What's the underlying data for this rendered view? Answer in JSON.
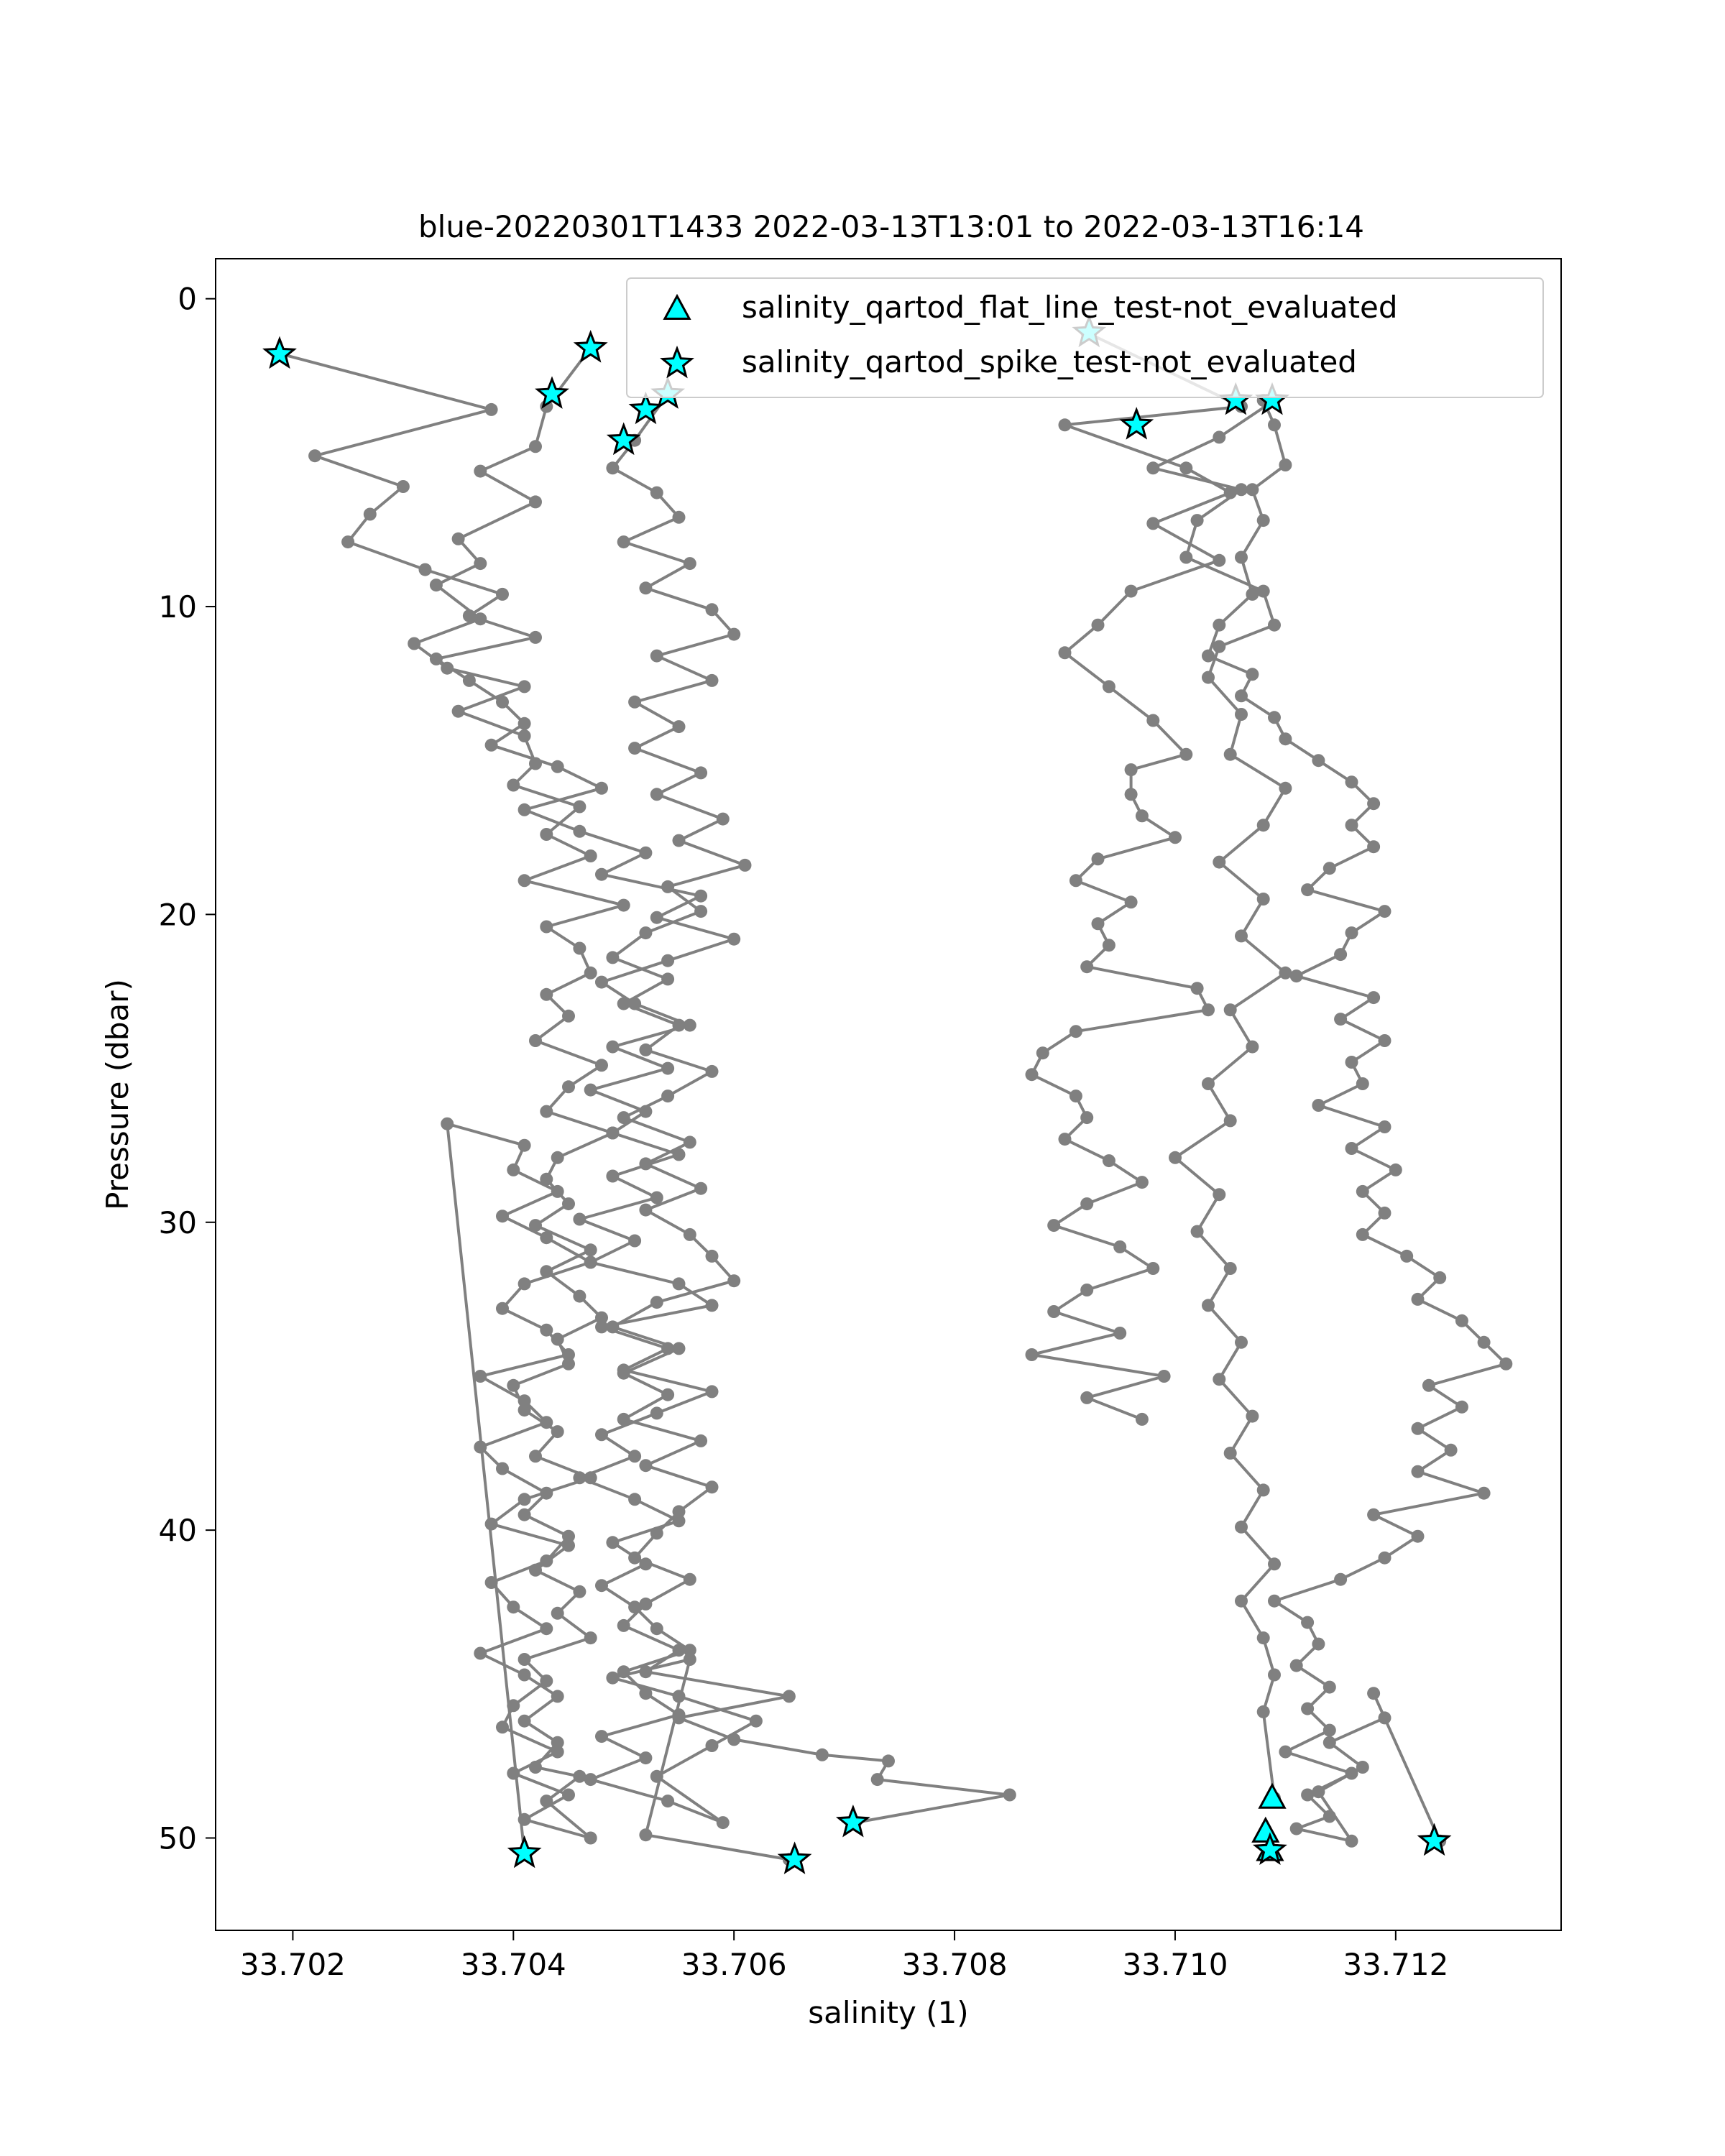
{
  "chart_data": {
    "type": "line",
    "title": "blue-20220301T1433 2022-03-13T13:01 to 2022-03-13T16:14",
    "xlabel": "salinity (1)",
    "ylabel": "Pressure (dbar)",
    "xlim": [
      33.7013,
      33.7135
    ],
    "ylim": [
      53.0,
      -1.3
    ],
    "y_inverted": true,
    "grid": false,
    "xticks": [
      33.702,
      33.704,
      33.706,
      33.708,
      33.71,
      33.712
    ],
    "xtick_labels": [
      "33.702",
      "33.704",
      "33.706",
      "33.708",
      "33.710",
      "33.712"
    ],
    "yticks": [
      0,
      10,
      20,
      30,
      40,
      50
    ],
    "ytick_labels": [
      "0",
      "10",
      "20",
      "30",
      "40",
      "50"
    ],
    "colors": {
      "profile_line": "#808080",
      "flag_fill": "#00ffff",
      "flag_edge": "#000000"
    },
    "legend": {
      "position": "upper-right",
      "entries": [
        {
          "label": "salinity_qartod_flat_line_test-not_evaluated",
          "marker": "triangle"
        },
        {
          "label": "salinity_qartod_spike_test-not_evaluated",
          "marker": "star"
        }
      ]
    },
    "series": [
      {
        "x": [
          33.7047,
          33.7043,
          33.7042,
          33.7037,
          33.7042,
          33.7035,
          33.7037,
          33.7033,
          33.7037,
          33.7031,
          33.7034,
          33.7041,
          33.7035,
          33.7041,
          33.7042,
          33.704,
          33.7046,
          33.7043,
          33.7047,
          33.7041,
          33.705,
          33.7043,
          33.7046,
          33.7047,
          33.7043,
          33.7045,
          33.7042,
          33.7048,
          33.7045,
          33.7043,
          33.7049,
          33.7044,
          33.7043,
          33.7045,
          33.7042,
          33.7047,
          33.7043,
          33.7046,
          33.7048,
          33.7044,
          33.7045,
          33.704,
          33.7041,
          33.7044,
          33.7042,
          33.7047,
          33.7041,
          33.7038,
          33.7045,
          33.7042,
          33.7046,
          33.7044,
          33.7047,
          33.7041,
          33.7043,
          33.704,
          33.7039,
          33.7044,
          33.704,
          33.7045,
          33.7041,
          33.7047,
          33.7043,
          33.7046,
          33.7042,
          33.7044,
          33.7041,
          33.7044,
          33.7041,
          33.7037,
          33.7043,
          33.704,
          33.7038,
          33.7043,
          33.7045,
          33.7041,
          33.7043,
          33.7039,
          33.7037,
          33.7043,
          33.7041,
          33.7037,
          33.7045,
          33.7043,
          33.7039,
          33.7041,
          33.7047,
          33.7043,
          33.7039,
          33.7044,
          33.704,
          33.7041,
          33.7034,
          33.7041
        ],
        "y": [
          1.6,
          3.5,
          4.8,
          5.6,
          6.6,
          7.8,
          8.6,
          9.3,
          10.4,
          11.2,
          12.0,
          12.6,
          13.4,
          14.2,
          15.1,
          15.8,
          16.5,
          17.4,
          18.1,
          18.9,
          19.7,
          20.4,
          21.1,
          21.9,
          22.6,
          23.3,
          24.1,
          24.9,
          25.6,
          26.4,
          27.1,
          27.9,
          28.6,
          29.4,
          30.1,
          30.9,
          31.6,
          32.4,
          33.1,
          33.8,
          34.6,
          35.3,
          36.1,
          36.8,
          37.6,
          38.3,
          39.0,
          39.8,
          40.5,
          41.3,
          42.0,
          42.7,
          43.5,
          44.2,
          44.9,
          45.7,
          46.4,
          47.2,
          47.9,
          48.6,
          49.4,
          50.0,
          48.8,
          48.0,
          47.7,
          46.9,
          46.2,
          45.4,
          44.7,
          44.0,
          43.2,
          42.5,
          41.7,
          41.0,
          40.2,
          39.5,
          38.8,
          38.0,
          37.3,
          36.5,
          35.8,
          35.0,
          34.3,
          33.5,
          32.8,
          32.0,
          31.3,
          30.5,
          29.8,
          29.0,
          28.3,
          27.5,
          26.8,
          50.5
        ]
      },
      {
        "x": [
          33.7019,
          33.7038,
          33.7022,
          33.703,
          33.7027,
          33.7025,
          33.7032,
          33.7039,
          33.7036,
          33.7042,
          33.7033,
          33.7036,
          33.7039,
          33.7041,
          33.7038,
          33.7044,
          33.7048,
          33.7041,
          33.7046,
          33.7052,
          33.7048,
          33.7057,
          33.7053,
          33.706,
          33.7054,
          33.7048,
          33.7051,
          33.7056,
          33.7049,
          33.7054,
          33.7047,
          33.7052,
          33.7049,
          33.7055,
          33.7049,
          33.7053,
          33.7046,
          33.7051,
          33.7047,
          33.7055,
          33.7058,
          33.7048,
          33.7054,
          33.705,
          33.7058,
          33.7053,
          33.7048,
          33.7051,
          33.7046,
          33.7051,
          33.7055,
          33.7049,
          33.7052,
          33.7048,
          33.7051,
          33.7053,
          33.7056,
          33.705,
          33.7052,
          33.7055,
          33.7048,
          33.7052,
          33.7047,
          33.7054,
          33.7059,
          33.7053,
          33.7058,
          33.7062,
          33.7055,
          33.7049,
          33.7056,
          33.7052,
          33.7065
        ],
        "y": [
          1.8,
          3.6,
          5.1,
          6.1,
          7.0,
          7.9,
          8.8,
          9.6,
          10.3,
          11.0,
          11.7,
          12.4,
          13.1,
          13.8,
          14.5,
          15.2,
          15.9,
          16.6,
          17.3,
          18.0,
          18.7,
          19.4,
          20.1,
          20.8,
          21.5,
          22.2,
          22.9,
          23.6,
          24.3,
          25.0,
          25.7,
          26.4,
          27.1,
          27.8,
          28.5,
          29.2,
          29.9,
          30.6,
          31.3,
          32.0,
          32.7,
          33.4,
          34.1,
          34.8,
          35.5,
          36.2,
          36.9,
          37.6,
          38.3,
          39.0,
          39.7,
          40.4,
          41.1,
          41.8,
          42.5,
          43.2,
          43.9,
          44.6,
          45.3,
          46.0,
          46.7,
          47.4,
          48.1,
          48.8,
          49.5,
          48.0,
          47.0,
          46.2,
          45.4,
          44.8,
          44.2,
          49.9,
          50.7
        ]
      },
      {
        "x": [
          33.7054,
          33.7051,
          33.7049,
          33.7053,
          33.7055,
          33.705,
          33.7056,
          33.7052,
          33.7058,
          33.706,
          33.7053,
          33.7058,
          33.7051,
          33.7055,
          33.7051,
          33.7057,
          33.7053,
          33.7059,
          33.7055,
          33.7061,
          33.7054,
          33.7057,
          33.7052,
          33.7049,
          33.7054,
          33.705,
          33.7055,
          33.7052,
          33.7058,
          33.7054,
          33.705,
          33.7056,
          33.7052,
          33.7057,
          33.7052,
          33.7056,
          33.7058,
          33.706,
          33.7053,
          33.7049,
          33.7055,
          33.705,
          33.7054,
          33.705,
          33.7057,
          33.7052,
          33.7058,
          33.7055,
          33.7053,
          33.7051,
          33.7056,
          33.7052,
          33.705,
          33.7055,
          33.7052,
          33.7065,
          33.7055,
          33.706,
          33.7068,
          33.7074,
          33.7073,
          33.7085,
          33.7071
        ],
        "y": [
          3.1,
          4.6,
          5.5,
          6.3,
          7.1,
          7.9,
          8.6,
          9.4,
          10.1,
          10.9,
          11.6,
          12.4,
          13.1,
          13.9,
          14.6,
          15.4,
          16.1,
          16.9,
          17.6,
          18.4,
          19.1,
          19.9,
          20.6,
          21.4,
          22.1,
          22.9,
          23.6,
          24.4,
          25.1,
          25.9,
          26.6,
          27.4,
          28.1,
          28.9,
          29.6,
          30.4,
          31.1,
          31.9,
          32.6,
          33.4,
          34.1,
          34.9,
          35.6,
          36.4,
          37.1,
          37.9,
          38.6,
          39.4,
          40.1,
          40.9,
          41.6,
          42.4,
          43.1,
          43.9,
          44.6,
          45.4,
          46.1,
          46.8,
          47.3,
          47.5,
          48.1,
          48.6,
          49.5
        ]
      },
      {
        "x": [
          33.7092,
          33.7106,
          33.709,
          33.7101,
          33.7105,
          33.7098,
          33.7104,
          33.7096,
          33.7093,
          33.709,
          33.7094,
          33.7098,
          33.7101,
          33.7096,
          33.7096,
          33.7097,
          33.71,
          33.7093,
          33.7091,
          33.7096,
          33.7093,
          33.7094,
          33.7092,
          33.7102,
          33.7103,
          33.7091,
          33.7088,
          33.7087,
          33.7091,
          33.7092,
          33.709,
          33.7094,
          33.7097,
          33.7092,
          33.7089,
          33.7095,
          33.7098,
          33.7092,
          33.7089,
          33.7095,
          33.7087,
          33.7099,
          33.7092,
          33.7097
        ],
        "y": [
          1.1,
          3.5,
          4.1,
          5.5,
          6.3,
          7.3,
          8.5,
          9.5,
          10.6,
          11.5,
          12.6,
          13.7,
          14.8,
          15.3,
          16.1,
          16.8,
          17.5,
          18.2,
          18.9,
          19.6,
          20.3,
          21.0,
          21.7,
          22.4,
          23.1,
          23.8,
          24.5,
          25.2,
          25.9,
          26.6,
          27.3,
          28.0,
          28.7,
          29.4,
          30.1,
          30.8,
          31.5,
          32.2,
          32.9,
          33.6,
          34.3,
          35.0,
          35.7,
          36.4
        ]
      },
      {
        "x": [
          33.7108,
          33.7109,
          33.711,
          33.7107,
          33.7108,
          33.7106,
          33.7107,
          33.7104,
          33.7103,
          33.7107,
          33.7106,
          33.7109,
          33.711,
          33.7113,
          33.7116,
          33.7118,
          33.7116,
          33.7118,
          33.7114,
          33.7112,
          33.7119,
          33.7116,
          33.7115,
          33.7111,
          33.7118,
          33.7115,
          33.7119,
          33.7116,
          33.7117,
          33.7113,
          33.7119,
          33.7116,
          33.712,
          33.7117,
          33.7119,
          33.7117,
          33.7121,
          33.7124,
          33.7122,
          33.7126,
          33.7128,
          33.713,
          33.7123,
          33.7126,
          33.7122,
          33.7125,
          33.7122,
          33.7128,
          33.7118,
          33.7122,
          33.7119,
          33.7115,
          33.7109,
          33.7112,
          33.7113,
          33.7111,
          33.7114,
          33.7112,
          33.7114,
          33.711,
          33.7116,
          33.7112,
          33.7114,
          33.7111,
          33.7116,
          33.7113,
          33.7117,
          33.7114,
          33.7119,
          33.7118,
          33.7124
        ],
        "y": [
          3.3,
          4.1,
          5.4,
          6.2,
          7.2,
          8.4,
          9.6,
          10.6,
          11.6,
          12.2,
          12.9,
          13.6,
          14.3,
          15.0,
          15.7,
          16.4,
          17.1,
          17.8,
          18.5,
          19.2,
          19.9,
          20.6,
          21.3,
          22.0,
          22.7,
          23.4,
          24.1,
          24.8,
          25.5,
          26.2,
          26.9,
          27.6,
          28.3,
          29.0,
          29.7,
          30.4,
          31.1,
          31.8,
          32.5,
          33.2,
          33.9,
          34.6,
          35.3,
          36.0,
          36.7,
          37.4,
          38.1,
          38.8,
          39.5,
          40.2,
          40.9,
          41.6,
          42.3,
          43.0,
          43.7,
          44.4,
          45.1,
          45.8,
          46.5,
          47.2,
          47.9,
          48.6,
          49.3,
          49.7,
          50.1,
          48.5,
          47.7,
          46.9,
          46.1,
          45.3,
          50.1
        ]
      },
      {
        "x": [
          33.7109,
          33.7104,
          33.7098,
          33.7106,
          33.7102,
          33.7101,
          33.7108,
          33.7109,
          33.7104,
          33.7103,
          33.7106,
          33.7105,
          33.711,
          33.7108,
          33.7104,
          33.7108,
          33.7106,
          33.711,
          33.7105,
          33.7107,
          33.7103,
          33.7105,
          33.71,
          33.7104,
          33.7102,
          33.7105,
          33.7103,
          33.7106,
          33.7104,
          33.7107,
          33.7105,
          33.7108,
          33.7106,
          33.7109,
          33.7106,
          33.7108,
          33.7109,
          33.7108,
          33.7109
        ],
        "y": [
          3.3,
          4.5,
          5.5,
          6.2,
          7.2,
          8.4,
          9.5,
          10.6,
          11.3,
          12.3,
          13.5,
          14.8,
          15.9,
          17.1,
          18.3,
          19.5,
          20.7,
          21.9,
          23.1,
          24.3,
          25.5,
          26.7,
          27.9,
          29.1,
          30.3,
          31.5,
          32.7,
          33.9,
          35.1,
          36.3,
          37.5,
          38.7,
          39.9,
          41.1,
          42.3,
          43.5,
          44.7,
          45.9,
          48.7
        ]
      }
    ],
    "flat_line_flags": {
      "x": [
        33.71088,
        33.71082,
        33.71086
      ],
      "y": [
        48.7,
        49.8,
        50.4
      ]
    },
    "spike_flags": {
      "x": [
        33.70188,
        33.70435,
        33.7047,
        33.705,
        33.7052,
        33.7054,
        33.7041,
        33.70655,
        33.70708,
        33.70922,
        33.70965,
        33.71055,
        33.71088,
        33.71086,
        33.71235
      ],
      "y": [
        1.8,
        3.1,
        1.6,
        4.6,
        3.6,
        3.1,
        50.5,
        50.7,
        49.5,
        1.1,
        4.1,
        3.3,
        3.3,
        50.4,
        50.1
      ]
    }
  }
}
